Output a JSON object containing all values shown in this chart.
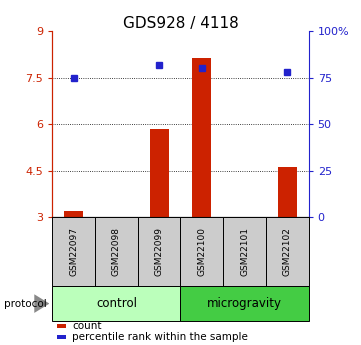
{
  "title": "GDS928 / 4118",
  "samples": [
    "GSM22097",
    "GSM22098",
    "GSM22099",
    "GSM22100",
    "GSM22101",
    "GSM22102"
  ],
  "bar_values": [
    3.22,
    3.0,
    5.85,
    8.12,
    3.0,
    4.62
  ],
  "bar_bottom": 3.0,
  "bar_color": "#cc2200",
  "dot_values": [
    75.0,
    null,
    82.0,
    80.0,
    null,
    78.0
  ],
  "dot_color": "#2222cc",
  "ylim_left": [
    3,
    9
  ],
  "ylim_right": [
    0,
    100
  ],
  "yticks_left": [
    3,
    4.5,
    6,
    7.5,
    9
  ],
  "ytick_labels_left": [
    "3",
    "4.5",
    "6",
    "7.5",
    "9"
  ],
  "yticks_right": [
    0,
    25,
    50,
    75,
    100
  ],
  "ytick_labels_right": [
    "0",
    "25",
    "50",
    "75",
    "100%"
  ],
  "grid_yticks": [
    4.5,
    6,
    7.5
  ],
  "groups": [
    {
      "label": "control",
      "start": 0,
      "end": 3,
      "color": "#bbffbb"
    },
    {
      "label": "microgravity",
      "start": 3,
      "end": 6,
      "color": "#44cc44"
    }
  ],
  "protocol_label": "protocol",
  "legend_items": [
    {
      "label": "count",
      "color": "#cc2200"
    },
    {
      "label": "percentile rank within the sample",
      "color": "#2222cc"
    }
  ],
  "title_fontsize": 11,
  "axis_color_left": "#cc2200",
  "axis_color_right": "#2222cc",
  "sample_label_fontsize": 6.5,
  "group_label_fontsize": 8.5,
  "sample_box_color": "#cccccc",
  "legend_fontsize": 7.5
}
